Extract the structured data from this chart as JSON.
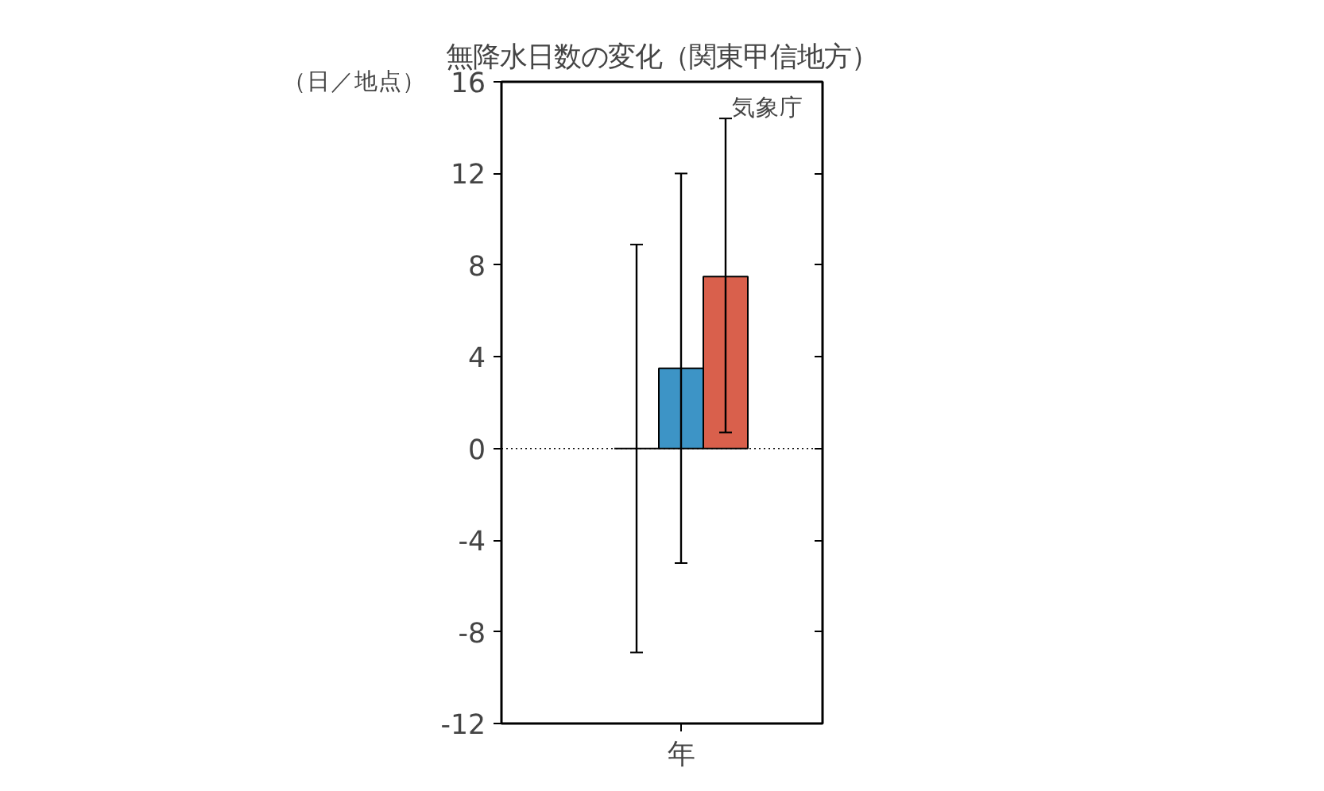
{
  "chart_data": {
    "type": "bar",
    "title": "無降水日数の変化（関東甲信地方）",
    "ylabel": "（日／地点）",
    "categories": [
      "年"
    ],
    "series": [
      {
        "color": "#000000",
        "values": [
          0
        ],
        "errors": [
          8.9
        ]
      },
      {
        "color": "#3d94c6",
        "values": [
          3.5
        ],
        "errors": [
          [
            -5.0,
            12.0
          ]
        ]
      },
      {
        "color": "#d9604c",
        "values": [
          7.5
        ],
        "errors": [
          [
            0.7,
            14.4
          ]
        ]
      }
    ],
    "ylim": [
      -12,
      16
    ],
    "yticks": [
      -12,
      -8,
      -4,
      0,
      4,
      8,
      12,
      16
    ],
    "grid": false,
    "ref_lines": [
      {
        "axis": "y",
        "value": 0,
        "line_style": "dotted",
        "color": "#000000"
      }
    ],
    "annotations": [
      "気象庁"
    ]
  }
}
